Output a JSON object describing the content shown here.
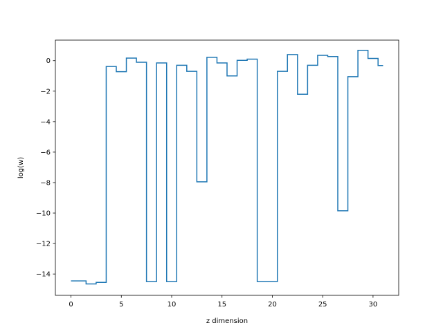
{
  "chart_data": {
    "type": "line",
    "drawstyle": "steps-mid",
    "title": "",
    "xlabel": "z dimension",
    "ylabel": "log(w)",
    "xlim": [
      -1.55,
      32.55
    ],
    "ylim": [
      -15.4,
      1.35
    ],
    "grid": false,
    "legend": "none",
    "line_color": "#1f77b4",
    "xticks": [
      0,
      5,
      10,
      15,
      20,
      25,
      30
    ],
    "yticks": [
      -14,
      -12,
      -10,
      -8,
      -6,
      -4,
      -2,
      0
    ],
    "tick_labels": {
      "x": [
        "0",
        "5",
        "10",
        "15",
        "20",
        "25",
        "30"
      ],
      "y": [
        "−14",
        "−12",
        "−10",
        "−8",
        "−6",
        "−4",
        "−2",
        "0"
      ]
    },
    "series": [
      {
        "x": [
          0,
          1,
          2,
          3,
          4,
          5,
          6,
          7,
          8,
          9,
          10,
          11,
          12,
          13,
          14,
          15,
          16,
          17,
          18,
          19,
          20,
          21,
          22,
          23,
          24,
          25,
          26,
          27,
          28,
          29,
          30,
          31
        ],
        "y": [
          -14.45,
          -14.45,
          -14.65,
          -14.55,
          -0.38,
          -0.72,
          0.17,
          -0.1,
          -14.5,
          -0.15,
          -14.5,
          -0.3,
          -0.7,
          -7.95,
          0.22,
          -0.15,
          -1.0,
          0.02,
          0.1,
          -14.5,
          -14.5,
          -0.7,
          0.4,
          -2.2,
          -0.3,
          0.35,
          0.27,
          -9.85,
          -1.05,
          0.68,
          0.15,
          -0.32
        ]
      }
    ]
  }
}
